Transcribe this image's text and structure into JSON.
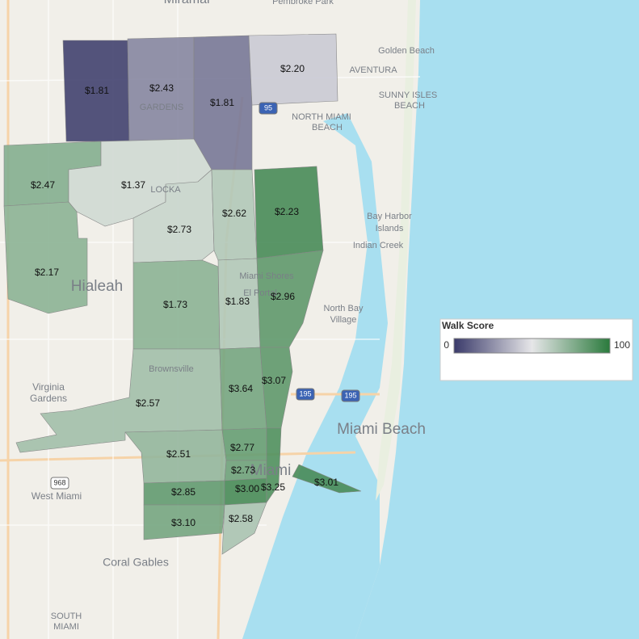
{
  "legend": {
    "title": "Walk Score",
    "min": 0,
    "max": 100,
    "colors": [
      "#3a3a6a",
      "#e6e6e8",
      "#2a7a3c"
    ]
  },
  "regions": [
    {
      "label": "$1.81",
      "walk_score": 2
    },
    {
      "label": "$2.43",
      "walk_score": 22
    },
    {
      "label": "$1.81",
      "walk_score": 18
    },
    {
      "label": "$2.20",
      "walk_score": 42
    },
    {
      "label": "$2.47",
      "walk_score": 76
    },
    {
      "label": "$2.17",
      "walk_score": 74
    },
    {
      "label": "$1.37",
      "walk_score": 56
    },
    {
      "label": "$2.73",
      "walk_score": 58
    },
    {
      "label": "$2.62",
      "walk_score": 64
    },
    {
      "label": "$2.23",
      "walk_score": 92
    },
    {
      "label": "$1.73",
      "walk_score": 74
    },
    {
      "label": "$1.83",
      "walk_score": 64
    },
    {
      "label": "$2.96",
      "walk_score": 86
    },
    {
      "label": "$2.57",
      "walk_score": 68
    },
    {
      "label": "$3.64",
      "walk_score": 80
    },
    {
      "label": "$3.07",
      "walk_score": 86
    },
    {
      "label": "$2.51",
      "walk_score": 72
    },
    {
      "label": "$2.77",
      "walk_score": 84
    },
    {
      "label": "$2.73",
      "walk_score": 82
    },
    {
      "label": "$2.85",
      "walk_score": 85
    },
    {
      "label": "$3.00",
      "walk_score": 92
    },
    {
      "label": "$3.25",
      "walk_score": 90
    },
    {
      "label": "$3.10",
      "walk_score": 80
    },
    {
      "label": "$2.58",
      "walk_score": 66
    },
    {
      "label": "$3.01",
      "walk_score": 92
    }
  ],
  "places": [
    "Miramar",
    "Pembroke Park",
    "Golden Beach",
    "AVENTURA",
    "SUNNY ISLES",
    "BEACH",
    "NORTH MIAMI",
    "BEACH",
    "Bay Harbor",
    "Islands",
    "Indian Creek",
    "North Bay",
    "Village",
    "Miami Beach",
    "Hialeah",
    "Virginia",
    "Gardens",
    "West Miami",
    "Coral Gables",
    "SOUTH",
    "MIAMI",
    "Brownsville",
    "Miami Shores",
    "El Portal",
    "Miami",
    "GARDENS",
    "LOCKA"
  ],
  "shields": [
    "968",
    "95",
    "195",
    "195"
  ]
}
